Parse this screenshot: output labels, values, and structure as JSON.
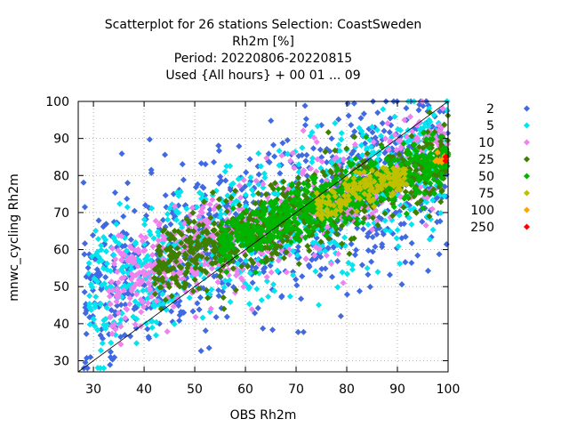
{
  "chart_data": {
    "type": "scatter",
    "title_lines": [
      "Scatterplot for   26 stations Selection: CoastSweden",
      "Rh2m [%]",
      "Period: 20220806-20220815",
      "Used {All hours} + 00 01 ... 09"
    ],
    "xlabel": "OBS Rh2m",
    "ylabel": "mnwc_cycling Rh2m",
    "xlim": [
      27,
      100
    ],
    "ylim": [
      27,
      100
    ],
    "xticks": [
      30,
      40,
      50,
      60,
      70,
      80,
      90,
      100
    ],
    "yticks": [
      30,
      40,
      50,
      60,
      70,
      80,
      90,
      100
    ],
    "grid": true,
    "legend_placement": "right",
    "reference_line": {
      "x": [
        27,
        100
      ],
      "y": [
        27,
        100
      ]
    },
    "series": [
      {
        "name": "2",
        "color": "#4169e1",
        "spread": 8.0,
        "xrange": [
          28,
          100
        ]
      },
      {
        "name": "5",
        "color": "#00e5ee",
        "spread": 6.5,
        "xrange": [
          29,
          100
        ]
      },
      {
        "name": "10",
        "color": "#ee82ee",
        "spread": 5.0,
        "xrange": [
          33,
          100
        ]
      },
      {
        "name": "25",
        "color": "#3f7f00",
        "spread": 3.8,
        "xrange": [
          42,
          100
        ]
      },
      {
        "name": "50",
        "color": "#00b400",
        "spread": 2.6,
        "xrange": [
          55,
          100
        ]
      },
      {
        "name": "75",
        "color": "#c0c000",
        "spread": 1.6,
        "xrange": [
          74,
          92
        ]
      },
      {
        "name": "100",
        "color": "#ffa500",
        "spread": 0.5,
        "xrange": [
          97,
          100
        ]
      },
      {
        "name": "250",
        "color": "#ff0000",
        "spread": 0.2,
        "xrange": [
          99,
          100
        ]
      }
    ]
  }
}
